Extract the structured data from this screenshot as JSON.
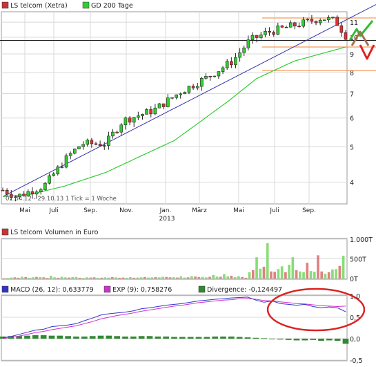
{
  "chart_data": [
    {
      "type": "candlestick",
      "legend": [
        {
          "label": "LS telcom (Xetra)",
          "color": "#cc3333"
        },
        {
          "label": "GD 200 Tage",
          "color": "#33cc33"
        }
      ],
      "x_labels": [
        "Mai",
        "Juli",
        "Sep.",
        "Nov.",
        "Jan.",
        "März",
        "Mai",
        "Juli",
        "Sep."
      ],
      "year_label": "2013",
      "y_ticks": [
        "4",
        "5",
        "6",
        "7",
        "8",
        "9",
        "10",
        "11"
      ],
      "y_scale": "log",
      "ylim": [
        3.5,
        11.7
      ],
      "info_text": "02.04.12 - 29.10.13   1 Tick = 1 Woche",
      "price": {
        "start": 3.8,
        "low": 3.6,
        "end": 11.0,
        "last_close": 10.1,
        "knots": [
          [
            0,
            3.8
          ],
          [
            0.04,
            3.65
          ],
          [
            0.12,
            3.9
          ],
          [
            0.19,
            4.7
          ],
          [
            0.23,
            5.1
          ],
          [
            0.3,
            5.1
          ],
          [
            0.35,
            5.9
          ],
          [
            0.44,
            6.3
          ],
          [
            0.52,
            7.1
          ],
          [
            0.6,
            7.8
          ],
          [
            0.67,
            8.6
          ],
          [
            0.72,
            9.8
          ],
          [
            0.77,
            10.3
          ],
          [
            0.82,
            10.6
          ],
          [
            0.87,
            10.9
          ],
          [
            0.93,
            11.3
          ],
          [
            0.97,
            11.1
          ],
          [
            1.0,
            10.1
          ]
        ]
      },
      "gd200": {
        "knots": [
          [
            0,
            3.65
          ],
          [
            0.08,
            3.7
          ],
          [
            0.18,
            3.9
          ],
          [
            0.3,
            4.25
          ],
          [
            0.42,
            4.8
          ],
          [
            0.5,
            5.2
          ],
          [
            0.58,
            5.9
          ],
          [
            0.66,
            6.7
          ],
          [
            0.74,
            7.7
          ],
          [
            0.85,
            8.6
          ],
          [
            1.0,
            9.4
          ]
        ]
      },
      "trendline_color": "#3333aa",
      "resistance_levels": [
        11.3,
        9.4,
        8.1
      ],
      "level_color": "#f08030",
      "current_level": 9.8
    },
    {
      "type": "bar",
      "title": "LS telcom Volumen in Euro",
      "y_ticks": [
        "1.000T",
        "500T",
        "0T"
      ],
      "ylim": [
        0,
        1000
      ],
      "values": [
        10,
        15,
        25,
        30,
        20,
        45,
        35,
        20,
        30,
        40,
        35,
        30,
        15,
        70,
        30,
        20,
        45,
        30,
        25,
        35,
        40,
        20,
        15,
        30,
        25,
        30,
        20,
        20,
        30,
        25,
        35,
        30,
        20,
        25,
        20,
        35,
        20,
        25,
        30,
        40,
        25,
        30,
        35,
        30,
        45,
        40,
        30,
        35,
        25,
        55,
        25,
        30,
        60,
        50,
        35,
        40,
        30,
        45,
        90,
        50,
        45,
        110,
        55,
        70,
        35,
        60,
        40,
        20,
        160,
        210,
        540,
        250,
        300,
        900,
        180,
        170,
        240,
        310,
        160,
        350,
        540,
        210,
        180,
        160,
        400,
        190,
        170,
        590,
        180,
        120,
        160,
        230,
        240,
        320,
        580
      ],
      "colors": {
        "up": "#88dd77",
        "down": "#e08080"
      }
    },
    {
      "type": "line",
      "legend": [
        {
          "label": "MACD (26, 12): 0,633779",
          "color": "#3333cc"
        },
        {
          "label": "EXP (9): 0,758276",
          "color": "#cc33cc"
        },
        {
          "label": "Divergence: -0,124497",
          "color": "#338833"
        }
      ],
      "y_ticks": [
        "1,0",
        "0,5",
        "0,0",
        "-0,5"
      ],
      "ylim": [
        -0.5,
        1.0
      ],
      "macd": [
        0.02,
        0.05,
        0.1,
        0.15,
        0.2,
        0.22,
        0.28,
        0.3,
        0.32,
        0.35,
        0.42,
        0.48,
        0.55,
        0.58,
        0.6,
        0.62,
        0.65,
        0.7,
        0.72,
        0.75,
        0.78,
        0.8,
        0.82,
        0.85,
        0.88,
        0.9,
        0.92,
        0.93,
        0.95,
        0.96,
        0.97,
        0.9,
        0.85,
        0.88,
        0.82,
        0.8,
        0.78,
        0.8,
        0.75,
        0.72,
        0.74,
        0.72,
        0.63
      ],
      "exp": [
        0.0,
        0.03,
        0.06,
        0.1,
        0.14,
        0.17,
        0.21,
        0.24,
        0.27,
        0.3,
        0.35,
        0.4,
        0.46,
        0.5,
        0.54,
        0.57,
        0.6,
        0.64,
        0.67,
        0.7,
        0.73,
        0.76,
        0.78,
        0.81,
        0.84,
        0.86,
        0.88,
        0.9,
        0.91,
        0.93,
        0.94,
        0.92,
        0.89,
        0.88,
        0.86,
        0.84,
        0.82,
        0.81,
        0.79,
        0.77,
        0.76,
        0.75,
        0.76
      ],
      "divergence": [
        0.05,
        0.06,
        0.06,
        0.07,
        0.08,
        0.08,
        0.07,
        0.07,
        0.06,
        0.05,
        0.05,
        0.06,
        0.07,
        0.07,
        0.06,
        0.05,
        0.05,
        0.06,
        0.06,
        0.05,
        0.05,
        0.04,
        0.04,
        0.04,
        0.04,
        0.04,
        0.05,
        0.05,
        0.05,
        0.04,
        0.03,
        0.02,
        0.01,
        -0.01,
        -0.02,
        -0.03,
        -0.04,
        -0.04,
        -0.03,
        -0.05,
        -0.04,
        -0.05,
        -0.12
      ],
      "annotation": "circled"
    }
  ]
}
